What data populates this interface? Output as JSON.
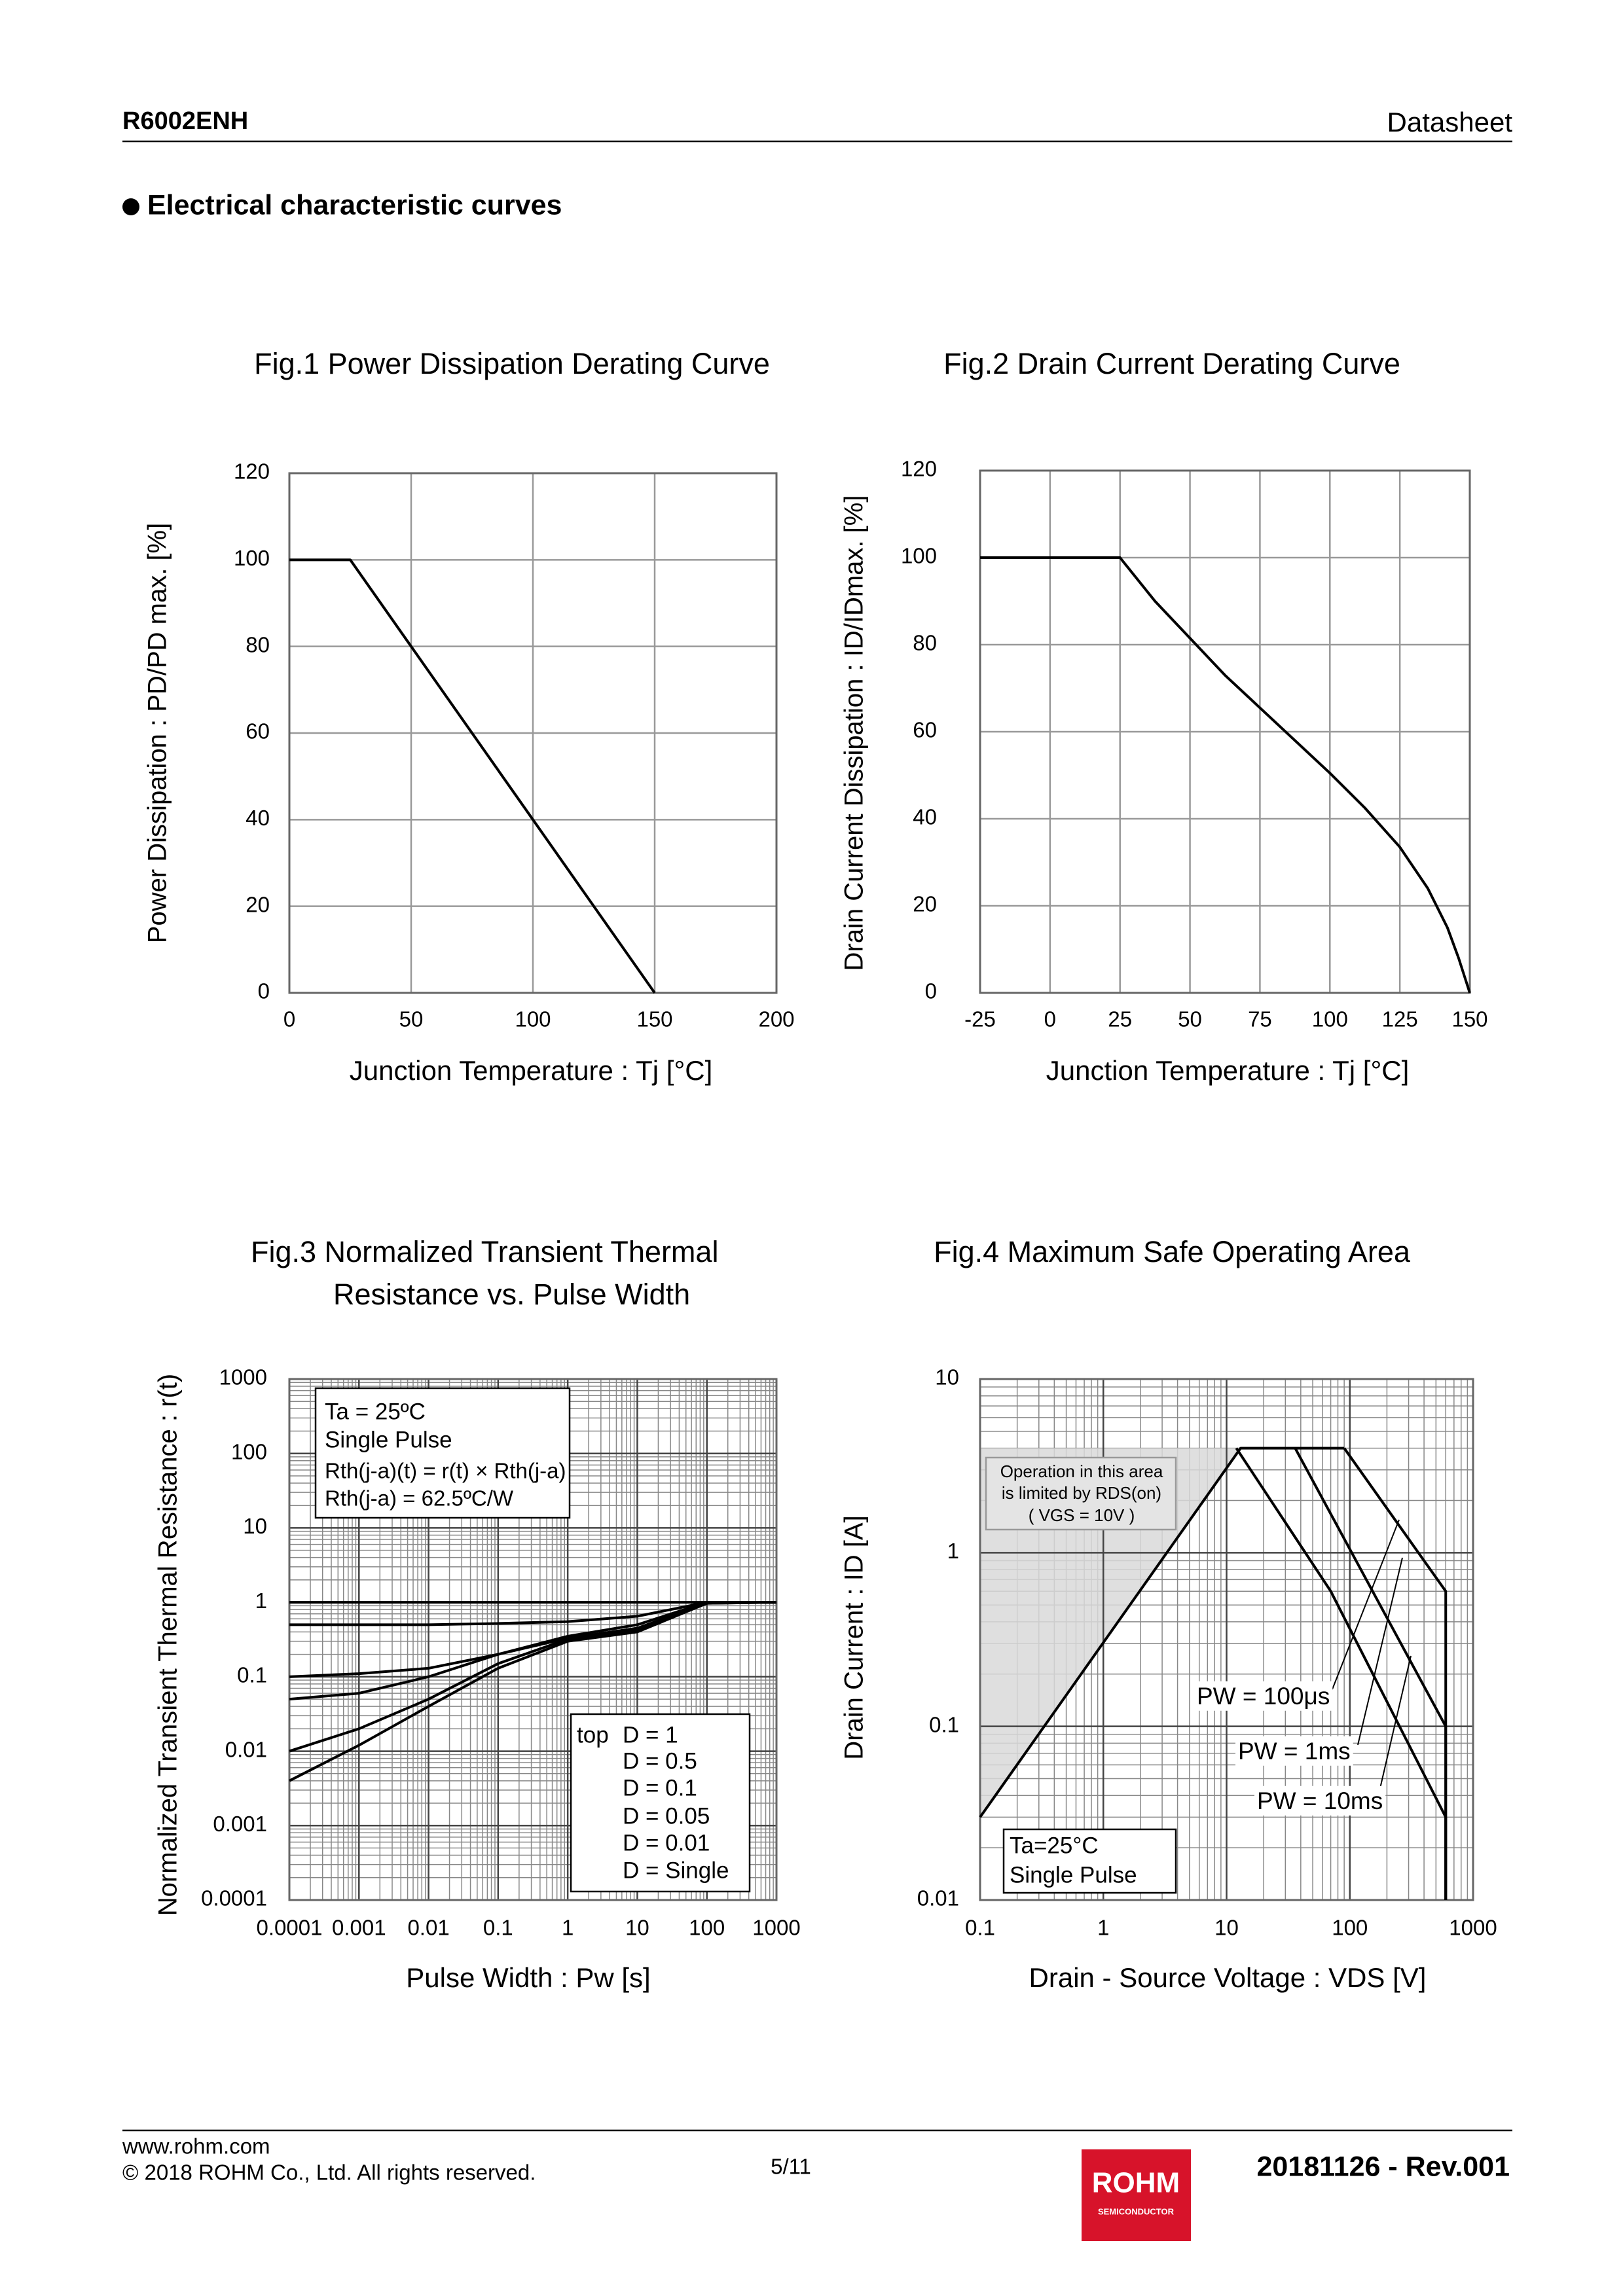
{
  "header": {
    "product": "R6002ENH",
    "doc_type": "Datasheet"
  },
  "section_title": "Electrical characteristic curves",
  "chart_data": [
    {
      "type": "line",
      "title": "Fig.1 Power Dissipation Derating Curve",
      "x_label": "Junction Temperature : Tj [°C]",
      "y_label": "Power Dissipation : PD/PD max. [%]",
      "xlim": [
        0,
        200
      ],
      "ylim": [
        0,
        120
      ],
      "xticks": [
        0,
        50,
        100,
        150,
        200
      ],
      "yticks": [
        0,
        20,
        40,
        60,
        80,
        100,
        120
      ],
      "grid": true,
      "series": [
        {
          "color": "#000000",
          "x": [
            0,
            25,
            50,
            100,
            150
          ],
          "values": [
            100,
            100,
            80,
            40,
            0
          ]
        }
      ]
    },
    {
      "type": "line",
      "title": "Fig.2 Drain Current Derating Curve",
      "x_label": "Junction Temperature : Tj [°C]",
      "y_label": "Drain Current Dissipation : ID/IDmax. [%]",
      "xlim": [
        -25,
        150
      ],
      "ylim": [
        0,
        120
      ],
      "xticks": [
        -25,
        0,
        25,
        50,
        75,
        100,
        125,
        150
      ],
      "yticks": [
        0,
        20,
        40,
        60,
        80,
        100,
        120
      ],
      "grid": true,
      "series": [
        {
          "color": "#000000",
          "x": [
            -25,
            25,
            37.5,
            50,
            62.5,
            75,
            87.5,
            100,
            112.5,
            125,
            135,
            142,
            146,
            148.5,
            150
          ],
          "values": [
            100,
            100,
            90,
            81.5,
            73,
            65.5,
            58,
            50.5,
            42.5,
            33.5,
            24,
            15,
            8,
            3,
            0
          ]
        }
      ]
    },
    {
      "type": "line",
      "title": [
        "Fig.3 Normalized Transient Thermal",
        "Resistance vs. Pulse Width"
      ],
      "x_label": "Pulse Width : Pw [s]",
      "y_label": "Normalized Transient Thermal Resistance : r(t)",
      "xscale": "log",
      "yscale": "log",
      "xlim": [
        0.0001,
        1000
      ],
      "ylim": [
        0.0001,
        1000
      ],
      "xticks": [
        0.0001,
        0.001,
        0.01,
        0.1,
        1,
        10,
        100,
        1000
      ],
      "yticks": [
        0.0001,
        0.001,
        0.01,
        0.1,
        1,
        10,
        100,
        1000
      ],
      "grid": true,
      "minor_grid": true,
      "legend_title": "top",
      "annotations": [
        "Ta = 25ºC",
        "Single Pulse",
        "Rth(j-a)(t) = r(t) × Rth(j-a)",
        "Rth(j-a) = 62.5ºC/W"
      ],
      "series": [
        {
          "name": "D = 1",
          "color": "#000000",
          "x": [
            0.0001,
            0.001,
            0.01,
            0.1,
            1,
            10,
            100,
            1000
          ],
          "values": [
            1,
            1,
            1,
            1,
            1,
            1,
            1,
            1
          ]
        },
        {
          "name": "D = 0.5",
          "color": "#000000",
          "x": [
            0.0001,
            0.001,
            0.01,
            0.1,
            1,
            10,
            100,
            1000
          ],
          "values": [
            0.5,
            0.5,
            0.5,
            0.52,
            0.55,
            0.65,
            1,
            1
          ]
        },
        {
          "name": "D = 0.1",
          "color": "#000000",
          "x": [
            0.0001,
            0.001,
            0.01,
            0.1,
            1,
            10,
            100,
            1000
          ],
          "values": [
            0.1,
            0.11,
            0.13,
            0.2,
            0.35,
            0.5,
            1,
            1
          ]
        },
        {
          "name": "D = 0.05",
          "color": "#000000",
          "x": [
            0.0001,
            0.001,
            0.01,
            0.1,
            1,
            10,
            100,
            1000
          ],
          "values": [
            0.05,
            0.06,
            0.1,
            0.2,
            0.33,
            0.45,
            0.98,
            1
          ]
        },
        {
          "name": "D = 0.01",
          "color": "#000000",
          "x": [
            0.0001,
            0.001,
            0.01,
            0.1,
            1,
            10,
            100,
            1000
          ],
          "values": [
            0.01,
            0.02,
            0.05,
            0.15,
            0.32,
            0.42,
            0.97,
            1
          ]
        },
        {
          "name": "D = Single",
          "color": "#000000",
          "x": [
            0.0001,
            0.001,
            0.01,
            0.1,
            1,
            10,
            100,
            1000
          ],
          "values": [
            0.004,
            0.012,
            0.04,
            0.13,
            0.3,
            0.4,
            0.97,
            1
          ]
        }
      ]
    },
    {
      "type": "line",
      "title": "Fig.4 Maximum Safe Operating Area",
      "x_label": "Drain - Source Voltage : VDS [V]",
      "y_label": "Drain Current : ID [A]",
      "xscale": "log",
      "yscale": "log",
      "xlim": [
        0.1,
        1000
      ],
      "ylim": [
        0.01,
        10
      ],
      "xticks": [
        0.1,
        1,
        10,
        100,
        1000
      ],
      "yticks": [
        0.01,
        0.1,
        1,
        10
      ],
      "grid": true,
      "minor_grid": true,
      "annotations": [
        "Operation in this area",
        "is limited by RDS(on)",
        "( VGS = 10V )",
        "Ta=25°C",
        "Single Pulse",
        "PW = 100μs",
        "PW = 1ms",
        "PW = 10ms"
      ],
      "series": [
        {
          "color": "#000000",
          "x": [
            0.1,
            13,
            90
          ],
          "values": [
            0.03,
            4,
            4
          ]
        },
        {
          "color": "#000000",
          "x": [
            90,
            600,
            600
          ],
          "values": [
            4,
            0.6,
            0.01
          ]
        },
        {
          "color": "#000000",
          "x": [
            36,
            600,
            600
          ],
          "values": [
            4,
            0.1,
            0.01
          ]
        },
        {
          "color": "#000000",
          "x": [
            12,
            70,
            600,
            600
          ],
          "values": [
            4,
            0.6,
            0.03,
            0.01
          ]
        }
      ]
    }
  ],
  "footer": {
    "url": "www.rohm.com",
    "copyright": "© 2018 ROHM Co., Ltd. All rights reserved.",
    "page": "5/11",
    "revision": "20181126 - Rev.001",
    "logo": "ROHM",
    "logo_sub": "SEMICONDUCTOR"
  }
}
